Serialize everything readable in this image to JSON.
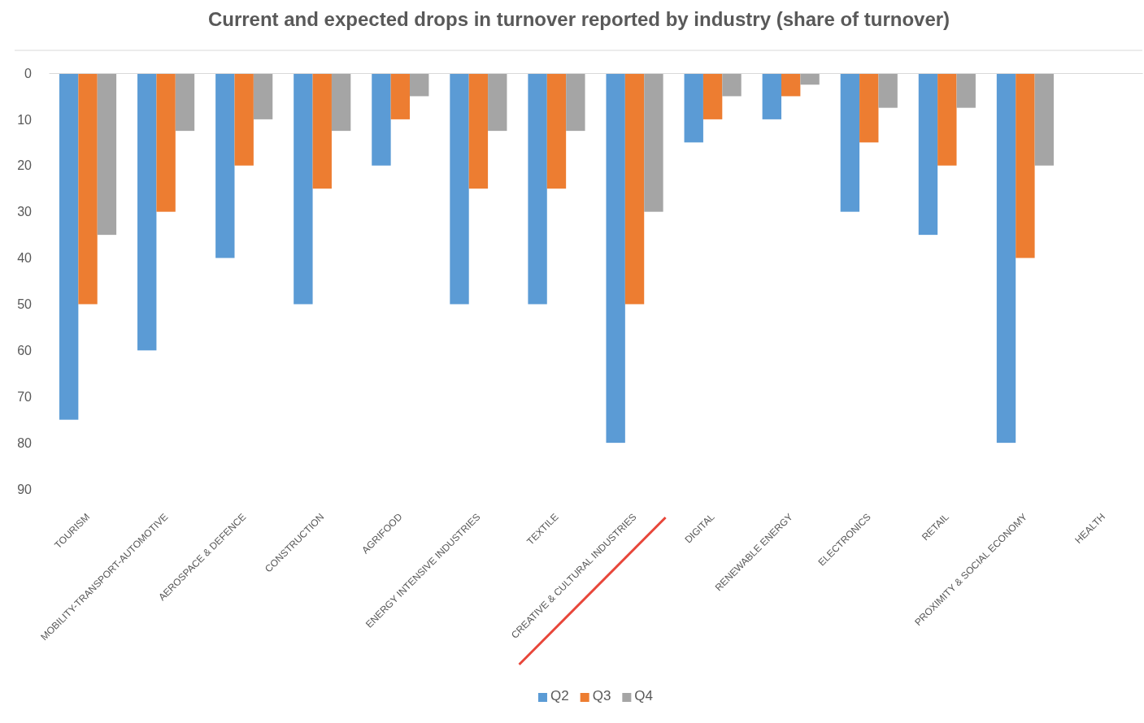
{
  "chart_data": {
    "type": "bar",
    "title": "Current and expected drops in turnover reported by industry (share of turnover)",
    "categories": [
      "TOURISM",
      "MOBILITY-TRANSPORT-AUTOMOTIVE",
      "AEROSPACE & DEFENCE",
      "CONSTRUCTION",
      "AGRIFOOD",
      "ENERGY INTENSIVE INDUSTRIES",
      "TEXTILE",
      "CREATIVE & CULTURAL INDUSTRIES",
      "DIGITAL",
      "RENEWABLE ENERGY",
      "ELECTRONICS",
      "RETAIL",
      "PROXIMITY & SOCIAL ECONOMY",
      "HEALTH"
    ],
    "series": [
      {
        "name": "Q2",
        "color": "#5b9bd5",
        "values": [
          75,
          60,
          40,
          50,
          20,
          50,
          50,
          80,
          15,
          10,
          30,
          35,
          80,
          null
        ]
      },
      {
        "name": "Q3",
        "color": "#ed7d31",
        "values": [
          50,
          30,
          20,
          25,
          10,
          25,
          25,
          50,
          10,
          5,
          15,
          20,
          40,
          null
        ]
      },
      {
        "name": "Q4",
        "color": "#a5a5a5",
        "values": [
          35,
          12.5,
          10,
          12.5,
          5,
          12.5,
          12.5,
          30,
          5,
          2.5,
          7.5,
          7.5,
          20,
          null
        ]
      }
    ],
    "ylim": [
      90,
      0
    ],
    "yticks": [
      0,
      10,
      20,
      30,
      40,
      50,
      60,
      70,
      80,
      90
    ],
    "legend": "bottom"
  }
}
